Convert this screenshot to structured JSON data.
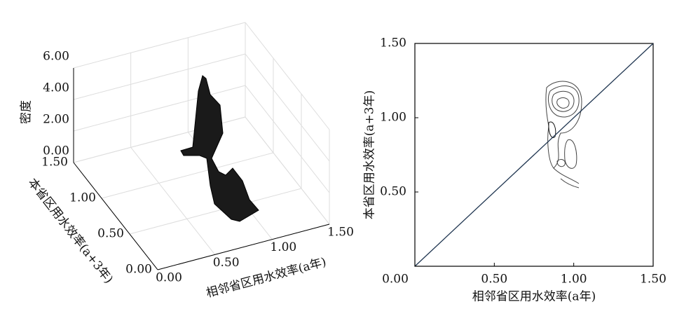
{
  "chart_data": [
    {
      "type": "surface3d",
      "x_label": "相邻省区用水效率(a年)",
      "y_label": "本省区用水效率(a+3年)",
      "z_label": "密度",
      "xlim": [
        0,
        1.5
      ],
      "ylim": [
        0,
        1.5
      ],
      "zlim": [
        0,
        6
      ],
      "xticks": [
        {
          "value": 0,
          "label": "0.00"
        },
        {
          "value": 0.5,
          "label": "0.50"
        },
        {
          "value": 1,
          "label": "1.00"
        },
        {
          "value": 1.5,
          "label": "1.50"
        }
      ],
      "yticks": [
        {
          "value": 0,
          "label": "0.00"
        },
        {
          "value": 0.5,
          "label": "0.50"
        },
        {
          "value": 1,
          "label": "1.00"
        },
        {
          "value": 1.5,
          "label": "1.50"
        }
      ],
      "zticks": [
        {
          "value": 0,
          "label": "0.00"
        },
        {
          "value": 2,
          "label": "2.00"
        },
        {
          "value": 4,
          "label": "4.00"
        },
        {
          "value": 6,
          "label": "6.00"
        }
      ],
      "grid": true,
      "color": "#1a1a1a"
    },
    {
      "type": "contour",
      "x_label": "相邻省区用水效率(a年)",
      "y_label": "本省区用水效率(a+3年)",
      "xlim": [
        0,
        1.5
      ],
      "ylim": [
        0,
        1.5
      ],
      "xticks": [
        {
          "value": 0,
          "label": "0.00"
        },
        {
          "value": 0.5,
          "label": "0.50"
        },
        {
          "value": 1,
          "label": "1.00"
        },
        {
          "value": 1.5,
          "label": "1.50"
        }
      ],
      "yticks": [
        {
          "value": 0,
          "label": "0.00"
        },
        {
          "value": 0.5,
          "label": "0.50"
        },
        {
          "value": 1,
          "label": "1.00"
        },
        {
          "value": 1.5,
          "label": "1.50"
        }
      ],
      "color": "#1f3550"
    }
  ]
}
